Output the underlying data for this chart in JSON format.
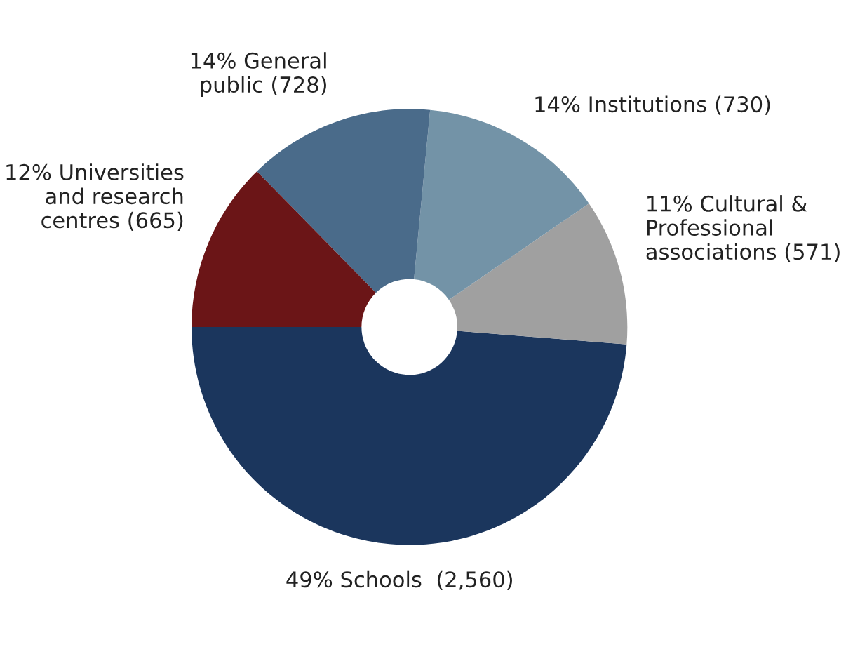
{
  "chart_data": {
    "type": "donut",
    "categories": [
      "49% Schools  (2,560)",
      "11% Cultural &\nProfessional\nassociations (571)",
      "14% Institutions (730)",
      "14% General\npublic (728)",
      "12% Universities\nand research\ncentres (665)"
    ],
    "values": [
      2560,
      571,
      730,
      728,
      665
    ],
    "colors": [
      "#1b365d",
      "#a0a0a0",
      "#7393a7",
      "#4a6b8a",
      "#6b1517"
    ]
  }
}
